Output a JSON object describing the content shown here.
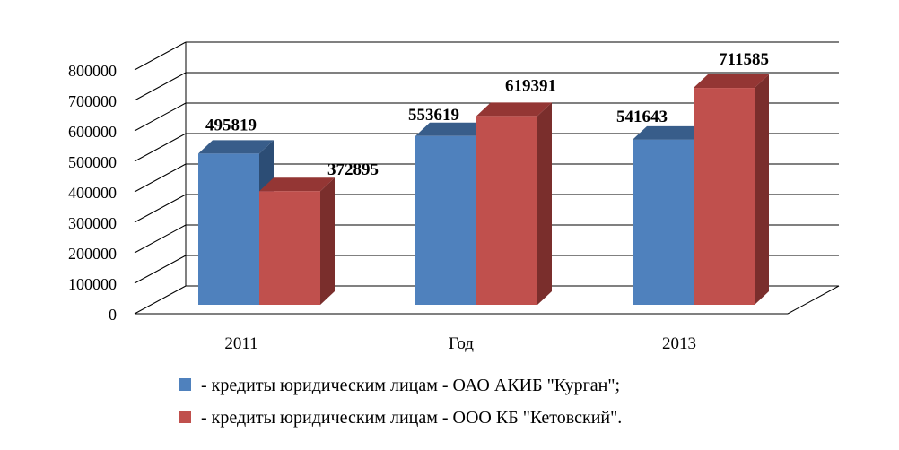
{
  "chart_data": {
    "type": "bar",
    "categories": [
      "2011",
      "Год",
      "2013"
    ],
    "series": [
      {
        "name": "- кредиты юридическим лицам - ОАО АКИБ \"Курган\";",
        "values": [
          495819,
          553619,
          541643
        ]
      },
      {
        "name": "- кредиты юридическим лицам - ООО КБ \"Кетовский\".",
        "values": [
          372895,
          619391,
          711585
        ]
      }
    ],
    "ylim": [
      0,
      800000
    ],
    "yticks": [
      0,
      100000,
      200000,
      300000,
      400000,
      500000,
      600000,
      700000,
      800000
    ],
    "grid": true,
    "legend": "bottom",
    "colors": {
      "series1_front": "#4f81bd",
      "series1_top": "#385d8a",
      "series1_side": "#2c4d75",
      "series2_front": "#c0504d",
      "series2_top": "#943634",
      "series2_side": "#7a2e2c",
      "grid": "#000000"
    }
  }
}
